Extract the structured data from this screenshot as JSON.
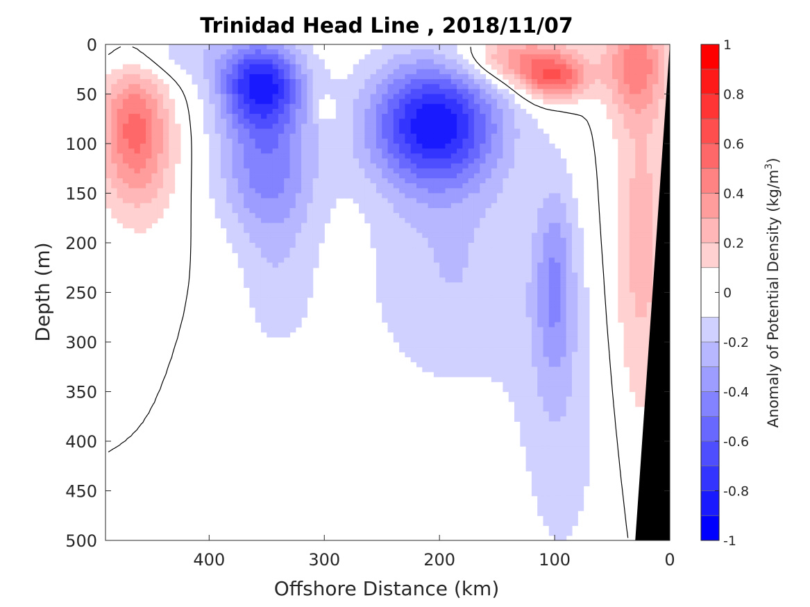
{
  "chart_data": {
    "type": "heatmap",
    "title": "Trinidad Head Line , 2018/11/07",
    "xlabel": "Offshore Distance (km)",
    "ylabel": "Depth (m)",
    "xlim": [
      490,
      0
    ],
    "ylim": [
      0,
      500
    ],
    "x_reversed": true,
    "y_reversed": true,
    "x_ticks": [
      "400",
      "300",
      "200",
      "100",
      "0"
    ],
    "x_tick_values": [
      400,
      300,
      200,
      100,
      0
    ],
    "y_ticks": [
      "0",
      "50",
      "100",
      "150",
      "200",
      "250",
      "300",
      "350",
      "400",
      "450",
      "500"
    ],
    "y_tick_values": [
      0,
      50,
      100,
      150,
      200,
      250,
      300,
      350,
      400,
      450,
      500
    ],
    "colorbar": {
      "label": "Anomaly of Potential Density (kg/m",
      "label_superscript": "3",
      "label_suffix": ")",
      "range": [
        -1,
        1
      ],
      "tick_labels": [
        "1",
        "0.8",
        "0.6",
        "0.4",
        "0.2",
        "0",
        "-0.2",
        "-0.4",
        "-0.6",
        "-0.8",
        "-1"
      ],
      "tick_values": [
        1,
        0.8,
        0.6,
        0.4,
        0.2,
        0,
        -0.2,
        -0.4,
        -0.6,
        -0.8,
        -1
      ],
      "levels": [
        -1,
        -0.9,
        -0.8,
        -0.7,
        -0.6,
        -0.5,
        -0.4,
        -0.3,
        -0.2,
        -0.1,
        0.1,
        0.2,
        0.3,
        0.4,
        0.5,
        0.6,
        0.7,
        0.8,
        0.9,
        1
      ],
      "negative_color": "#0000ff",
      "positive_color": "#ff0000",
      "zero_color": "#ffffff"
    },
    "features": [
      {
        "type": "positive",
        "x": 465,
        "depth": 80,
        "value": 0.45,
        "spread_x": 20,
        "spread_depth": 45
      },
      {
        "type": "positive",
        "x": 460,
        "depth": 130,
        "value": 0.15,
        "spread_x": 25,
        "spread_depth": 50
      },
      {
        "type": "positive",
        "x": 300,
        "depth": 65,
        "value": 0.15,
        "spread_x": 8,
        "spread_depth": 8
      },
      {
        "type": "positive",
        "x": 100,
        "depth": 35,
        "value": 0.5,
        "spread_x": 20,
        "spread_depth": 15
      },
      {
        "type": "positive",
        "x": 130,
        "depth": 15,
        "value": 0.4,
        "spread_x": 35,
        "spread_depth": 18
      },
      {
        "type": "positive",
        "x": 30,
        "depth": 20,
        "value": 0.4,
        "spread_x": 18,
        "spread_depth": 35
      },
      {
        "type": "positive",
        "x": 25,
        "depth": 200,
        "value": 0.25,
        "spread_x": 18,
        "spread_depth": 130
      },
      {
        "type": "negative",
        "x": 355,
        "depth": 40,
        "value": -0.75,
        "spread_x": 25,
        "spread_depth": 30
      },
      {
        "type": "negative",
        "x": 350,
        "depth": 120,
        "value": -0.45,
        "spread_x": 30,
        "spread_depth": 50
      },
      {
        "type": "negative",
        "x": 340,
        "depth": 240,
        "value": -0.15,
        "spread_x": 25,
        "spread_depth": 60
      },
      {
        "type": "negative",
        "x": 205,
        "depth": 80,
        "value": -0.85,
        "spread_x": 40,
        "spread_depth": 45
      },
      {
        "type": "negative",
        "x": 190,
        "depth": 230,
        "value": -0.2,
        "spread_x": 55,
        "spread_depth": 90
      },
      {
        "type": "negative",
        "x": 100,
        "depth": 240,
        "value": -0.3,
        "spread_x": 12,
        "spread_depth": 70
      },
      {
        "type": "negative",
        "x": 95,
        "depth": 380,
        "value": -0.15,
        "spread_x": 30,
        "spread_depth": 130
      },
      {
        "type": "negative",
        "x": 430,
        "depth": 10,
        "value": -0.15,
        "spread_x": 50,
        "spread_depth": 20
      }
    ],
    "bathymetry": {
      "surface_x": 0,
      "bottom_x": 30,
      "color": "#000000"
    }
  }
}
